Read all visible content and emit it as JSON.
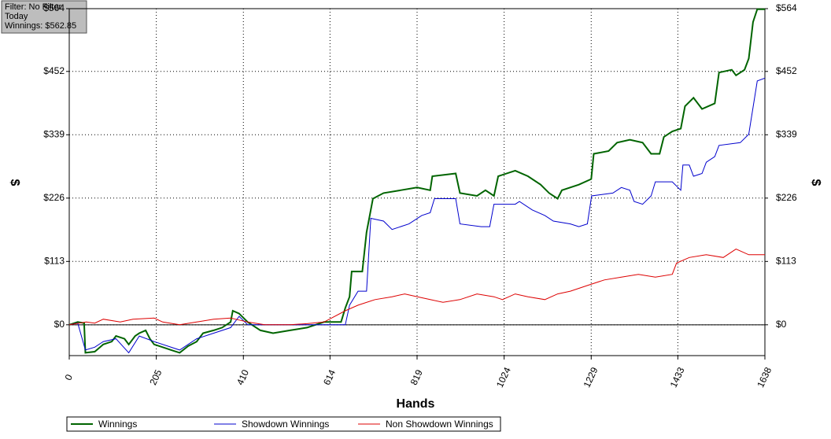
{
  "chart_data": {
    "type": "line",
    "annotations": [
      "Filter: No Filter",
      "Today",
      "Winnings: $562.85"
    ],
    "x_label": "Hands",
    "y_label": "$",
    "grid": true,
    "xlim": [
      0,
      1638
    ],
    "xticks": [
      0,
      205,
      410,
      614,
      819,
      1024,
      1229,
      1433,
      1638
    ],
    "ylim": [
      -55,
      564
    ],
    "yticks": [
      {
        "value": 0,
        "label": "$0"
      },
      {
        "value": 113,
        "label": "$113"
      },
      {
        "value": 226,
        "label": "$226"
      },
      {
        "value": 339,
        "label": "$339"
      },
      {
        "value": 452,
        "label": "$452"
      },
      {
        "value": 564,
        "label": "$564"
      }
    ],
    "series": [
      {
        "name": "Winnings",
        "color": "#006400",
        "x": [
          0,
          20,
          35,
          38,
          60,
          80,
          100,
          110,
          130,
          140,
          155,
          165,
          180,
          190,
          200,
          220,
          240,
          260,
          280,
          300,
          315,
          340,
          360,
          380,
          385,
          400,
          420,
          450,
          480,
          520,
          560,
          600,
          640,
          650,
          660,
          665,
          690,
          700,
          715,
          740,
          780,
          819,
          850,
          855,
          910,
          920,
          960,
          980,
          1000,
          1010,
          1050,
          1080,
          1110,
          1130,
          1150,
          1160,
          1200,
          1229,
          1235,
          1270,
          1290,
          1320,
          1350,
          1370,
          1390,
          1400,
          1420,
          1440,
          1450,
          1470,
          1490,
          1520,
          1530,
          1560,
          1570,
          1590,
          1600,
          1610,
          1620,
          1638
        ],
        "values": [
          0,
          5,
          3,
          -50,
          -48,
          -35,
          -30,
          -20,
          -25,
          -35,
          -20,
          -15,
          -10,
          -25,
          -35,
          -40,
          -45,
          -50,
          -38,
          -30,
          -15,
          -10,
          -5,
          5,
          25,
          20,
          5,
          -10,
          -15,
          -10,
          -5,
          5,
          5,
          30,
          50,
          95,
          95,
          165,
          225,
          235,
          240,
          245,
          240,
          265,
          270,
          235,
          230,
          240,
          230,
          265,
          275,
          265,
          250,
          235,
          225,
          240,
          250,
          260,
          305,
          310,
          325,
          330,
          325,
          305,
          305,
          335,
          345,
          350,
          390,
          405,
          385,
          395,
          450,
          455,
          445,
          455,
          475,
          540,
          563,
          563
        ]
      },
      {
        "name": "Showdown Winnings",
        "color": "#0000cd",
        "x": [
          0,
          20,
          38,
          60,
          80,
          110,
          140,
          165,
          200,
          260,
          300,
          340,
          380,
          400,
          420,
          480,
          560,
          600,
          650,
          660,
          680,
          700,
          710,
          740,
          760,
          800,
          830,
          850,
          860,
          910,
          920,
          970,
          990,
          1000,
          1050,
          1060,
          1090,
          1120,
          1140,
          1180,
          1200,
          1220,
          1230,
          1280,
          1300,
          1320,
          1330,
          1350,
          1370,
          1380,
          1420,
          1440,
          1445,
          1460,
          1470,
          1490,
          1500,
          1520,
          1530,
          1580,
          1600,
          1620,
          1638
        ],
        "values": [
          0,
          3,
          -45,
          -40,
          -30,
          -25,
          -50,
          -20,
          -30,
          -45,
          -25,
          -15,
          -5,
          15,
          0,
          0,
          0,
          0,
          0,
          35,
          60,
          60,
          190,
          185,
          170,
          180,
          195,
          200,
          225,
          225,
          180,
          175,
          175,
          215,
          215,
          220,
          205,
          195,
          185,
          180,
          175,
          180,
          230,
          235,
          245,
          240,
          220,
          215,
          230,
          255,
          255,
          240,
          285,
          285,
          265,
          270,
          290,
          300,
          320,
          325,
          340,
          435,
          440
        ]
      },
      {
        "name": "Non Showdown Winnings",
        "color": "#dd0000",
        "x": [
          0,
          40,
          60,
          80,
          120,
          150,
          200,
          220,
          260,
          300,
          340,
          380,
          420,
          460,
          520,
          560,
          600,
          650,
          680,
          720,
          760,
          790,
          820,
          850,
          880,
          920,
          960,
          1000,
          1020,
          1050,
          1080,
          1120,
          1150,
          1180,
          1220,
          1260,
          1300,
          1340,
          1380,
          1420,
          1430,
          1460,
          1500,
          1540,
          1570,
          1600,
          1638
        ],
        "values": [
          0,
          5,
          3,
          10,
          5,
          10,
          12,
          5,
          0,
          5,
          10,
          12,
          5,
          0,
          0,
          2,
          5,
          25,
          35,
          45,
          50,
          55,
          50,
          45,
          40,
          45,
          55,
          50,
          45,
          55,
          50,
          45,
          55,
          60,
          70,
          80,
          85,
          90,
          85,
          90,
          110,
          120,
          125,
          120,
          135,
          125,
          125
        ]
      }
    ]
  }
}
